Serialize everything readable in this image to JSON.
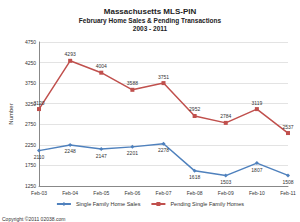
{
  "chart_data": {
    "type": "line",
    "title": "Massachusetts MLS-PIN",
    "subtitle": "February Home Sales & Pending Transactions\n2003 - 2011",
    "y_label": "Number",
    "annotations": [
      "Copyright ©2011 02038.com"
    ],
    "categories": [
      "Feb-03",
      "Feb-04",
      "Feb-05",
      "Feb-06",
      "Feb-07",
      "Feb-08",
      "Feb-09",
      "Feb-10",
      "Feb-11"
    ],
    "series": [
      {
        "name": "Single Family Home Sales",
        "color": "#4f81bd",
        "marker": "diamond",
        "values": [
          2110,
          2248,
          2147,
          2201,
          2278,
          1618,
          1503,
          1807,
          1508
        ]
      },
      {
        "name": "Pending Single Family Homes",
        "color": "#c0504d",
        "marker": "square",
        "values": [
          3120,
          4293,
          4004,
          3588,
          3751,
          2952,
          2784,
          3119,
          2537
        ]
      }
    ],
    "ylim": [
      1250,
      4750
    ],
    "yticks": [
      1250,
      1750,
      2250,
      2750,
      3250,
      3750,
      4250,
      4750
    ],
    "grid": true,
    "legend": "bottom",
    "data_labels": true
  }
}
